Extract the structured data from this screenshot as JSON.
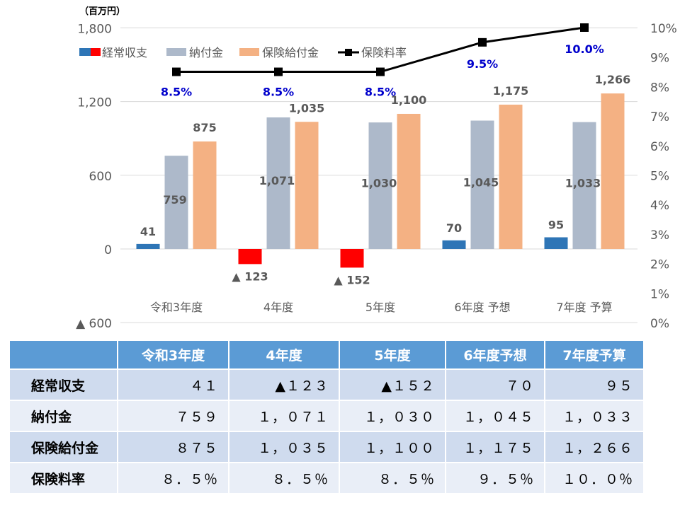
{
  "chart_data": {
    "type": "bar",
    "unit_label": "（百万円）",
    "categories": [
      "令和3年度",
      "4年度",
      "5年度",
      "6年度 予想",
      "7年度 予算"
    ],
    "series": [
      {
        "name": "経常収支",
        "type": "bar",
        "values": [
          41,
          -123,
          -152,
          70,
          95
        ],
        "labels": [
          "41",
          "▲ 123",
          "▲ 152",
          "70",
          "95"
        ],
        "color_pos": "#2E75B6",
        "color_neg": "#FF0000"
      },
      {
        "name": "納付金",
        "type": "bar",
        "values": [
          759,
          1071,
          1030,
          1045,
          1033
        ],
        "labels": [
          "759",
          "1,071",
          "1,030",
          "1,045",
          "1,033"
        ],
        "color": "#ADB9CA"
      },
      {
        "name": "保険給付金",
        "type": "bar",
        "values": [
          875,
          1035,
          1100,
          1175,
          1266
        ],
        "labels": [
          "875",
          "1,035",
          "1,100",
          "1,175",
          "1,266"
        ],
        "color": "#F4B183"
      },
      {
        "name": "保険料率",
        "type": "line",
        "axis": "right",
        "values": [
          8.5,
          8.5,
          8.5,
          9.5,
          10.0
        ],
        "labels": [
          "8.5%",
          "8.5%",
          "8.5%",
          "9.5%",
          "10.0%"
        ],
        "color": "#000000",
        "label_color": "#0000CC"
      }
    ],
    "y_left": {
      "ylim": [
        -600,
        1800
      ],
      "ticks": [
        "▲ 600",
        "0",
        "600",
        "1,200",
        "1,800"
      ],
      "tick_values": [
        -600,
        0,
        600,
        1200,
        1800
      ]
    },
    "y_right": {
      "ylim": [
        0,
        10
      ],
      "ticks": [
        "0%",
        "1%",
        "2%",
        "3%",
        "4%",
        "5%",
        "6%",
        "7%",
        "8%",
        "9%",
        "10%"
      ]
    },
    "legend_position": "top-left",
    "grid": true
  },
  "table": {
    "headers": [
      "",
      "令和3年度",
      "4年度",
      "5年度",
      "6年度予想",
      "7年度予算"
    ],
    "rows": [
      {
        "label": "経常収支",
        "values": [
          "４１",
          "▲１２３",
          "▲１５２",
          "７０",
          "９５"
        ]
      },
      {
        "label": "納付金",
        "values": [
          "７５９",
          "１，０７１",
          "１，０３０",
          "１，０４５",
          "１，０３３"
        ]
      },
      {
        "label": "保険給付金",
        "values": [
          "８７５",
          "１，０３５",
          "１，１００",
          "１，１７５",
          "１，２６６"
        ]
      },
      {
        "label": "保険料率",
        "values": [
          "８．５％",
          "８．５％",
          "８．５％",
          "９．５％",
          "１０．０％"
        ]
      }
    ]
  }
}
